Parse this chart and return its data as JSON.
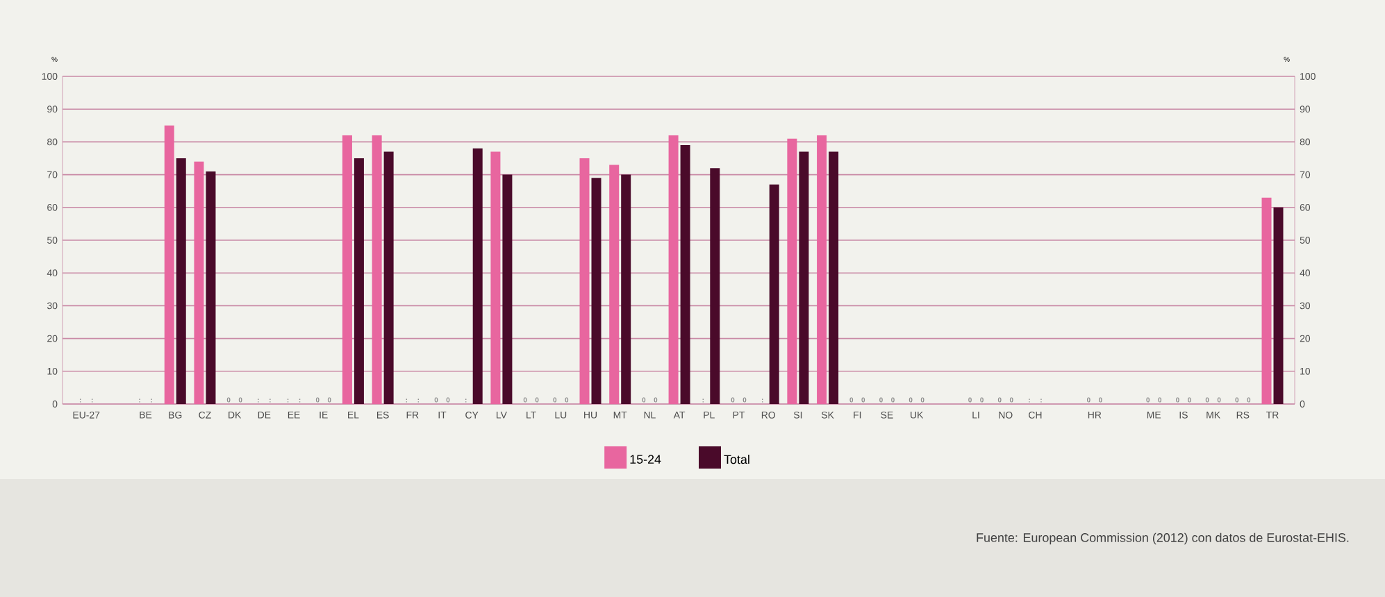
{
  "chart_data": {
    "type": "bar",
    "categories": [
      "EU-27",
      null,
      "BE",
      "BG",
      "CZ",
      "DK",
      "DE",
      "EE",
      "IE",
      "EL",
      "ES",
      "FR",
      "IT",
      "CY",
      "LV",
      "LT",
      "LU",
      "HU",
      "MT",
      "NL",
      "AT",
      "PL",
      "PT",
      "RO",
      "SI",
      "SK",
      "FI",
      "SE",
      "UK",
      null,
      "LI",
      "NO",
      "CH",
      null,
      "HR",
      null,
      "ME",
      "IS",
      "MK",
      "RS",
      "TR"
    ],
    "series": [
      {
        "name": "15-24",
        "color": "#e8669f",
        "values": [
          null,
          null,
          null,
          85,
          74,
          0,
          null,
          null,
          0,
          82,
          82,
          null,
          0,
          null,
          77,
          0,
          0,
          75,
          73,
          0,
          82,
          null,
          0,
          null,
          81,
          82,
          0,
          0,
          0,
          null,
          0,
          0,
          null,
          null,
          0,
          null,
          0,
          0,
          0,
          0,
          63
        ],
        "value_labels": [
          ":",
          null,
          ":",
          null,
          null,
          "0",
          ":",
          ":",
          "0",
          null,
          null,
          ":",
          "0",
          ":",
          null,
          "0",
          "0",
          null,
          null,
          "0",
          null,
          ":",
          "0",
          ":",
          null,
          null,
          "0",
          "0",
          "0",
          null,
          "0",
          "0",
          ":",
          null,
          "0",
          null,
          "0",
          "0",
          "0",
          "0",
          null
        ]
      },
      {
        "name": "Total",
        "color": "#4a0a2a",
        "values": [
          null,
          null,
          null,
          75,
          71,
          0,
          null,
          null,
          0,
          75,
          77,
          null,
          0,
          78,
          70,
          0,
          0,
          69,
          70,
          0,
          79,
          72,
          0,
          67,
          77,
          77,
          0,
          0,
          0,
          null,
          0,
          0,
          null,
          null,
          0,
          null,
          0,
          0,
          0,
          0,
          60
        ],
        "value_labels": [
          ":",
          null,
          ":",
          null,
          null,
          "0",
          ":",
          ":",
          "0",
          null,
          null,
          ":",
          "0",
          null,
          null,
          "0",
          "0",
          null,
          null,
          "0",
          null,
          null,
          "0",
          null,
          null,
          null,
          "0",
          "0",
          "0",
          null,
          "0",
          "0",
          ":",
          null,
          "0",
          null,
          "0",
          "0",
          "0",
          "0",
          null
        ]
      }
    ],
    "ylabel": "%",
    "y2label": "%",
    "ylim": [
      0,
      100
    ],
    "yticks": [
      0,
      10,
      20,
      30,
      40,
      50,
      60,
      70,
      80,
      90,
      100
    ],
    "y2lim": [
      0,
      100
    ],
    "y2ticks": [
      0,
      10,
      20,
      30,
      40,
      50,
      60,
      70,
      80,
      90,
      100
    ],
    "grid": "y",
    "legend": "bottom",
    "annotations": [
      "Fuente: European Commission (2012) con datos de Eurostat-EHIS."
    ]
  }
}
